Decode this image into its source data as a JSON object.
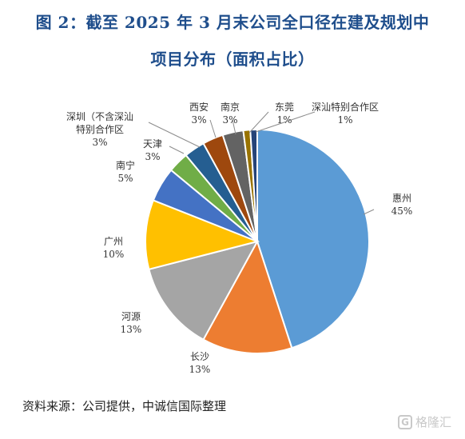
{
  "title_lines": [
    "图 2：截至 2025 年 3 月末公司全口径在建及规划中",
    "项目分布（面积占比）"
  ],
  "chart_data": {
    "type": "pie",
    "title": "图 2：截至 2025 年 3 月末公司全口径在建及规划中项目分布（面积占比）",
    "unit": "%",
    "slices": [
      {
        "label": "惠州",
        "value": 45,
        "display": "45%",
        "color": "#5b9bd5"
      },
      {
        "label": "长沙",
        "value": 13,
        "display": "13%",
        "color": "#ed7d31"
      },
      {
        "label": "河源",
        "value": 13,
        "display": "13%",
        "color": "#a5a5a5"
      },
      {
        "label": "广州",
        "value": 10,
        "display": "10%",
        "color": "#ffc000"
      },
      {
        "label": "南宁",
        "value": 5,
        "display": "5%",
        "color": "#4472c4"
      },
      {
        "label": "天津",
        "value": 3,
        "display": "3%",
        "color": "#70ad47"
      },
      {
        "label": "深圳（不含深汕特别合作区",
        "value": 3,
        "display": "3%",
        "color": "#255e91"
      },
      {
        "label": "西安",
        "value": 3,
        "display": "3%",
        "color": "#9e480e"
      },
      {
        "label": "南京",
        "value": 3,
        "display": "3%",
        "color": "#636363"
      },
      {
        "label": "东莞",
        "value": 1,
        "display": "1%",
        "color": "#997300"
      },
      {
        "label": "深汕特别合作区",
        "value": 1,
        "display": "1%",
        "color": "#264478"
      }
    ]
  },
  "source": "资料来源：公司提供，中诚信国际整理",
  "watermark": {
    "icon": "G",
    "text": "格隆汇"
  }
}
